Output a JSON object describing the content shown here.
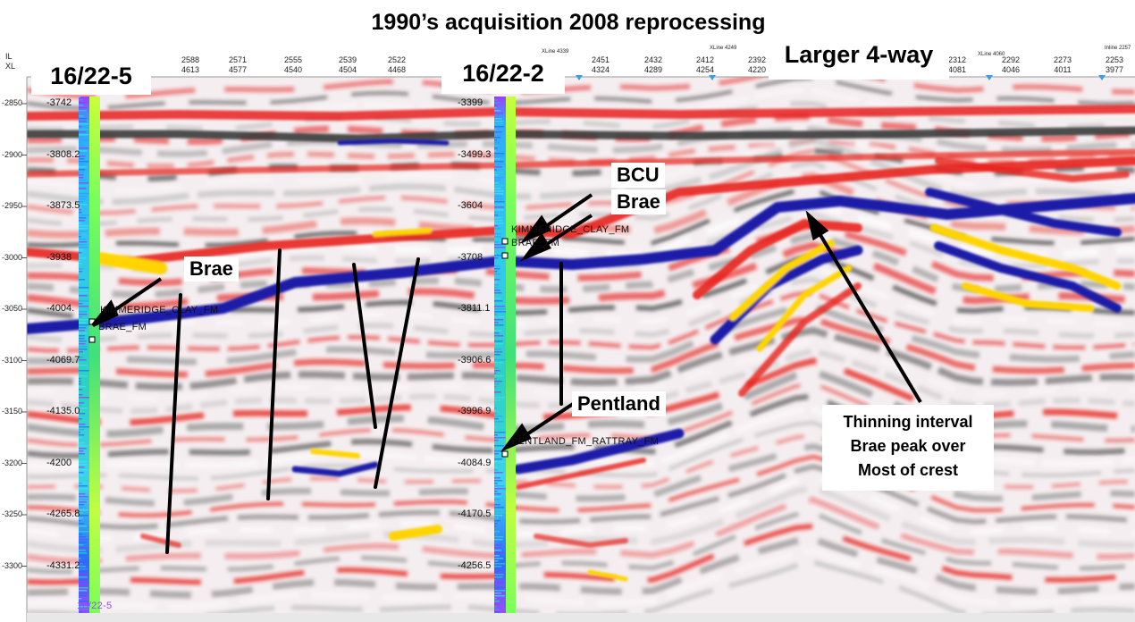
{
  "title": "1990’s acquisition 2008 reprocessing",
  "axis_labels": {
    "il": "IL",
    "xl": "XL"
  },
  "time_ticks": [
    "-2850",
    "-2900",
    "-2950",
    "-3000",
    "-3050",
    "-3100",
    "-3150",
    "-3200",
    "-3250",
    "-3300"
  ],
  "trace_headers": [
    {
      "il": "2588",
      "xl": "4613"
    },
    {
      "il": "2571",
      "xl": "4577"
    },
    {
      "il": "2555",
      "xl": "4540"
    },
    {
      "il": "2539",
      "xl": "4504"
    },
    {
      "il": "2522",
      "xl": "4468"
    },
    {
      "il": "2451",
      "xl": "4324"
    },
    {
      "il": "2432",
      "xl": "4289"
    },
    {
      "il": "2412",
      "xl": "4254"
    },
    {
      "il": "2392",
      "xl": "4220"
    },
    {
      "il": "2312",
      "xl": "4081"
    },
    {
      "il": "2292",
      "xl": "4046"
    },
    {
      "il": "2273",
      "xl": "4011"
    },
    {
      "il": "2253",
      "xl": "3977"
    }
  ],
  "small_header_text": [
    "XLine 4339",
    "XLine 4249",
    "XLine 4060",
    "Inline 2257"
  ],
  "wells": [
    {
      "name": "16/22-5",
      "depths": [
        "-3742",
        "-3808.2",
        "-3873.5",
        "-3938",
        "-4004.",
        "-4069.7",
        "-4135.0",
        "-4200",
        "-4265.8",
        "-4331.2"
      ],
      "horizons": [
        "KIMMERIDGE_CLAY_FM",
        "BRAE_FM"
      ],
      "footer": "16/22-5"
    },
    {
      "name": "16/22-2",
      "depths": [
        "-3399",
        "-3499.3",
        "-3604",
        "-3708",
        "-3811.1",
        "-3906.6",
        "-3996.9",
        "-4084.9",
        "-4170.5",
        "-4256.5"
      ],
      "horizons": [
        "KIMMERIDGE_CLAY_FM",
        "BRAE_FM",
        "PENTLAND_FM_RATTRAY_FM"
      ]
    }
  ],
  "annotations": {
    "brae_left": "Brae",
    "bcu": "BCU",
    "brae_right": "Brae",
    "pentland": "Pentland",
    "larger": "Larger 4-way",
    "thinning": [
      "Thinning interval",
      "Brae peak over",
      "Most of crest"
    ]
  },
  "colors": {
    "positive": "#e8211c",
    "peak": "#ffd400",
    "negative": "#1a1aa8",
    "trough": "#3a3a3a"
  }
}
